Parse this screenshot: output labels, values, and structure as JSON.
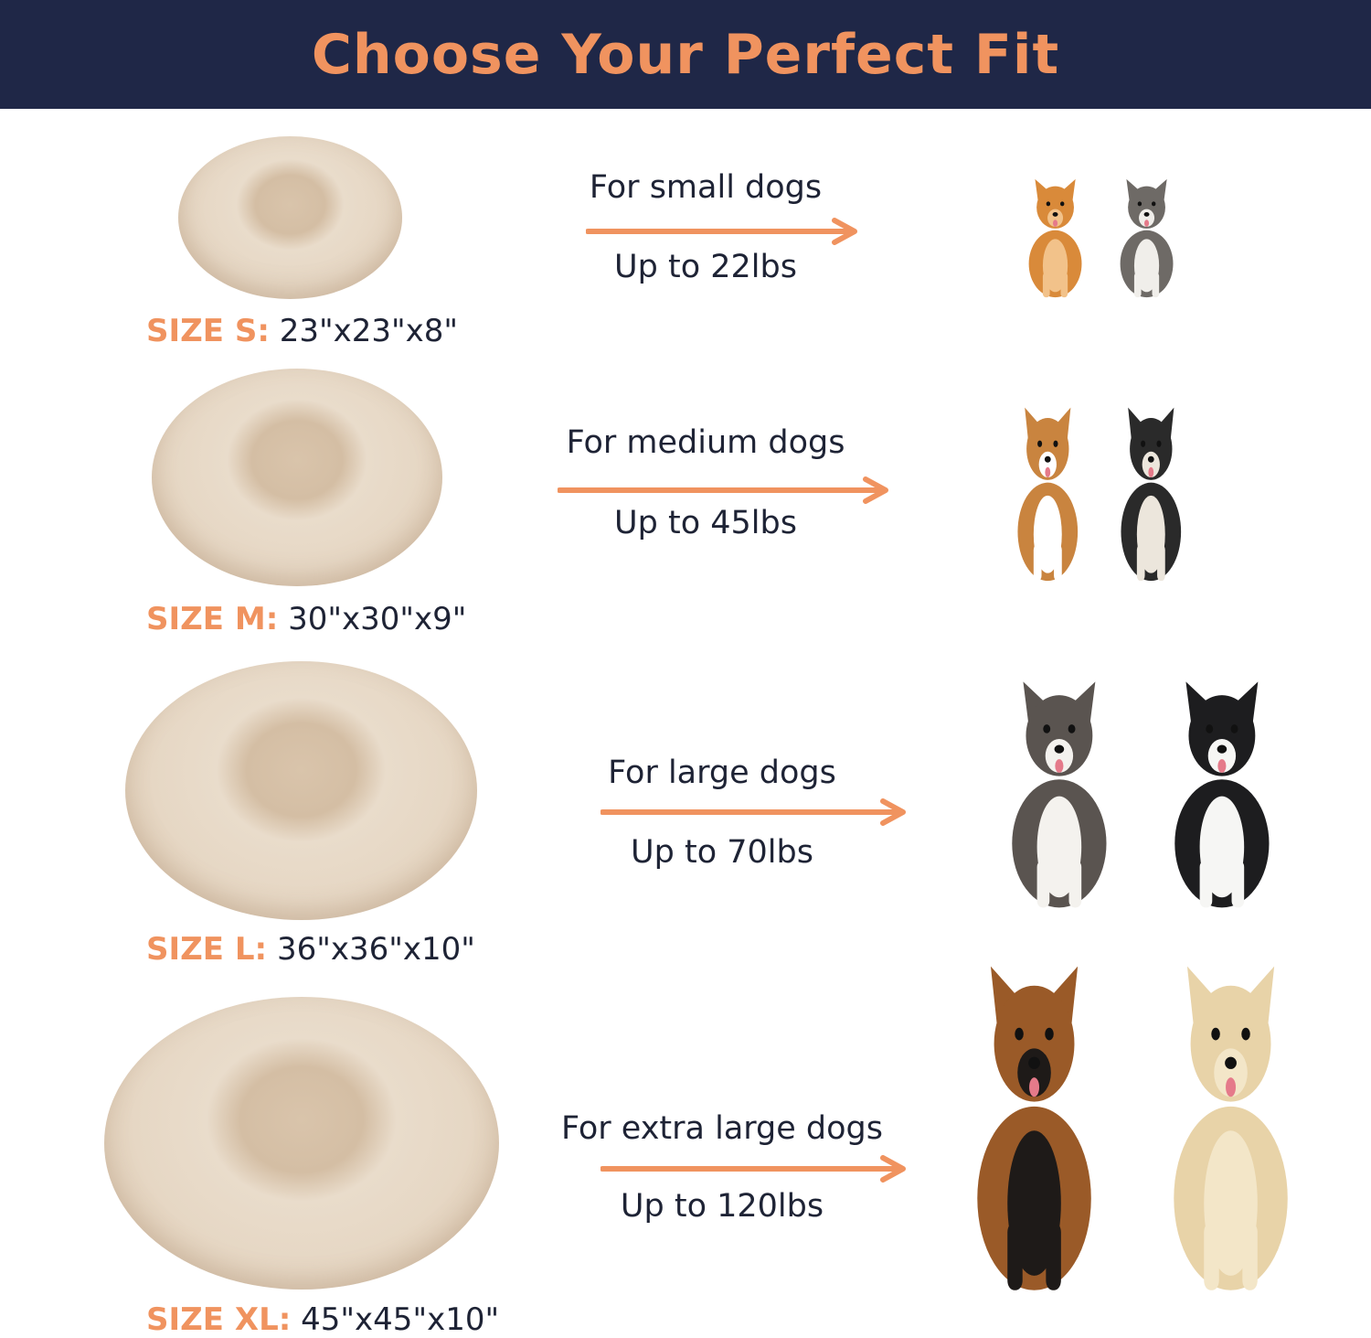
{
  "header": {
    "title": "Choose Your Perfect Fit"
  },
  "colors": {
    "header_bg": "#1f2747",
    "accent": "#f0935f",
    "text": "#1e2335",
    "bed": "#e6d7c4"
  },
  "sizes": [
    {
      "size_label": "SIZE S:",
      "dimensions": "23\"x23\"x8\"",
      "for_text": "For small dogs",
      "weight": "Up to 22lbs",
      "dogs": [
        {
          "breed_icon": "pomeranian",
          "color": "#d98a3a",
          "accent": "#f2c28a"
        },
        {
          "breed_icon": "yorkshire-terrier",
          "color": "#6e6a66",
          "accent": "#f0eeea"
        }
      ]
    },
    {
      "size_label": "SIZE M:",
      "dimensions": "30\"x30\"x9\"",
      "for_text": "For medium dogs",
      "weight": "Up to 45lbs",
      "dogs": [
        {
          "breed_icon": "beagle",
          "color": "#c9843f",
          "accent": "#ffffff"
        },
        {
          "breed_icon": "french-bulldog",
          "color": "#2a2a2a",
          "accent": "#ece6dc"
        }
      ]
    },
    {
      "size_label": "SIZE L:",
      "dimensions": "36\"x36\"x10\"",
      "for_text": "For large dogs",
      "weight": "Up to 70lbs",
      "dogs": [
        {
          "breed_icon": "australian-shepherd",
          "color": "#5a5450",
          "accent": "#f4f2ee"
        },
        {
          "breed_icon": "border-collie",
          "color": "#1d1d1f",
          "accent": "#f6f6f4"
        }
      ]
    },
    {
      "size_label": "SIZE XL:",
      "dimensions": "45\"x45\"x10\"",
      "for_text": "For extra large dogs",
      "weight": "Up to 120lbs",
      "dogs": [
        {
          "breed_icon": "german-shepherd",
          "color": "#9a5a28",
          "accent": "#1e1a18"
        },
        {
          "breed_icon": "golden-retriever",
          "color": "#e8d3a8",
          "accent": "#f3e6c8"
        }
      ]
    }
  ]
}
